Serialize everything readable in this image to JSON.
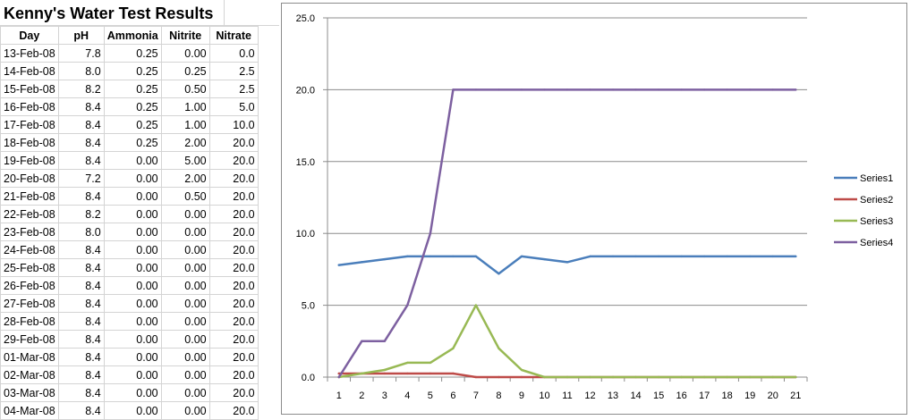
{
  "sheet": {
    "title": "Kenny's Water Test Results",
    "headers": [
      "Day",
      "pH",
      "Ammonia",
      "Nitrite",
      "Nitrate"
    ],
    "rows": [
      [
        "13-Feb-08",
        "7.8",
        "0.25",
        "0.00",
        "0.0"
      ],
      [
        "14-Feb-08",
        "8.0",
        "0.25",
        "0.25",
        "2.5"
      ],
      [
        "15-Feb-08",
        "8.2",
        "0.25",
        "0.50",
        "2.5"
      ],
      [
        "16-Feb-08",
        "8.4",
        "0.25",
        "1.00",
        "5.0"
      ],
      [
        "17-Feb-08",
        "8.4",
        "0.25",
        "1.00",
        "10.0"
      ],
      [
        "18-Feb-08",
        "8.4",
        "0.25",
        "2.00",
        "20.0"
      ],
      [
        "19-Feb-08",
        "8.4",
        "0.00",
        "5.00",
        "20.0"
      ],
      [
        "20-Feb-08",
        "7.2",
        "0.00",
        "2.00",
        "20.0"
      ],
      [
        "21-Feb-08",
        "8.4",
        "0.00",
        "0.50",
        "20.0"
      ],
      [
        "22-Feb-08",
        "8.2",
        "0.00",
        "0.00",
        "20.0"
      ],
      [
        "23-Feb-08",
        "8.0",
        "0.00",
        "0.00",
        "20.0"
      ],
      [
        "24-Feb-08",
        "8.4",
        "0.00",
        "0.00",
        "20.0"
      ],
      [
        "25-Feb-08",
        "8.4",
        "0.00",
        "0.00",
        "20.0"
      ],
      [
        "26-Feb-08",
        "8.4",
        "0.00",
        "0.00",
        "20.0"
      ],
      [
        "27-Feb-08",
        "8.4",
        "0.00",
        "0.00",
        "20.0"
      ],
      [
        "28-Feb-08",
        "8.4",
        "0.00",
        "0.00",
        "20.0"
      ],
      [
        "29-Feb-08",
        "8.4",
        "0.00",
        "0.00",
        "20.0"
      ],
      [
        "01-Mar-08",
        "8.4",
        "0.00",
        "0.00",
        "20.0"
      ],
      [
        "02-Mar-08",
        "8.4",
        "0.00",
        "0.00",
        "20.0"
      ],
      [
        "03-Mar-08",
        "8.4",
        "0.00",
        "0.00",
        "20.0"
      ],
      [
        "04-Mar-08",
        "8.4",
        "0.00",
        "0.00",
        "20.0"
      ]
    ]
  },
  "chart_data": {
    "type": "line",
    "title": "",
    "xlabel": "",
    "ylabel": "",
    "x": [
      1,
      2,
      3,
      4,
      5,
      6,
      7,
      8,
      9,
      10,
      11,
      12,
      13,
      14,
      15,
      16,
      17,
      18,
      19,
      20,
      21
    ],
    "ylim": [
      0,
      25
    ],
    "yticks": [
      "0.0",
      "5.0",
      "10.0",
      "15.0",
      "20.0",
      "25.0"
    ],
    "grid": true,
    "legend_position": "right",
    "series": [
      {
        "name": "Series1",
        "color": "#4a7ebb",
        "values": [
          7.8,
          8.0,
          8.2,
          8.4,
          8.4,
          8.4,
          8.4,
          7.2,
          8.4,
          8.2,
          8.0,
          8.4,
          8.4,
          8.4,
          8.4,
          8.4,
          8.4,
          8.4,
          8.4,
          8.4,
          8.4
        ]
      },
      {
        "name": "Series2",
        "color": "#be4b48",
        "values": [
          0.25,
          0.25,
          0.25,
          0.25,
          0.25,
          0.25,
          0,
          0,
          0,
          0,
          0,
          0,
          0,
          0,
          0,
          0,
          0,
          0,
          0,
          0,
          0
        ]
      },
      {
        "name": "Series3",
        "color": "#98b954",
        "values": [
          0,
          0.25,
          0.5,
          1,
          1,
          2,
          5,
          2,
          0.5,
          0,
          0,
          0,
          0,
          0,
          0,
          0,
          0,
          0,
          0,
          0,
          0
        ]
      },
      {
        "name": "Series4",
        "color": "#7d60a0",
        "values": [
          0,
          2.5,
          2.5,
          5,
          10,
          20,
          20,
          20,
          20,
          20,
          20,
          20,
          20,
          20,
          20,
          20,
          20,
          20,
          20,
          20,
          20
        ]
      }
    ]
  }
}
